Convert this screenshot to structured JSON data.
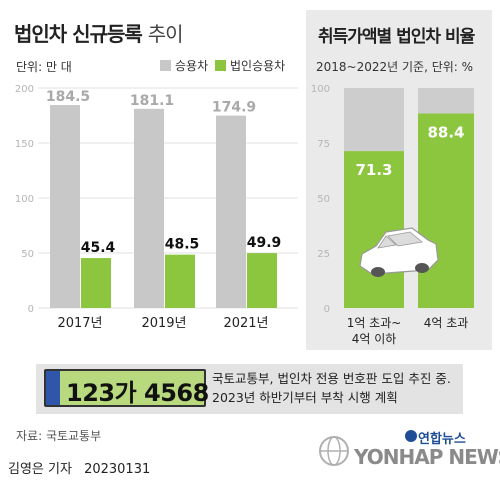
{
  "left_chart": {
    "title_bold": "법인차 신규등록",
    "title_light": "추이",
    "unit": "단위: 만 대"
  },
  "right_chart": {
    "title": "취득가액별 법인차 비율",
    "subtitle": "2018~2022년 기준, 단위: %"
  },
  "colors": {
    "gray_bar": "#c8c8c8",
    "green_bar": "#8cc63f",
    "axis_text": "#b5b5b5",
    "plate_green": "#b9d97e",
    "plate_blue": "#2f56a8"
  },
  "chart_data": [
    {
      "type": "bar",
      "title": "법인차 신규등록 추이",
      "ylabel": "단위: 만 대",
      "ylim": [
        0,
        200
      ],
      "yticks": [
        0,
        50,
        100,
        150,
        200
      ],
      "categories": [
        "2017년",
        "2019년",
        "2021년"
      ],
      "series": [
        {
          "name": "승용차",
          "color": "#c8c8c8",
          "values": [
            184.5,
            181.1,
            174.9
          ]
        },
        {
          "name": "법인승용차",
          "color": "#8cc63f",
          "values": [
            45.4,
            48.5,
            49.9
          ]
        }
      ],
      "legend": "top"
    },
    {
      "type": "bar",
      "title": "취득가액별 법인차 비율",
      "subtitle": "2018~2022년 기준, 단위: %",
      "ylim": [
        0,
        100
      ],
      "yticks": [
        0,
        25,
        50,
        75,
        100
      ],
      "categories": [
        "1억 초과~\n4억 이하",
        "4억 초과"
      ],
      "series": [
        {
          "name": "",
          "color": "#8cc63f",
          "values": [
            71.3,
            88.4
          ]
        }
      ]
    }
  ],
  "plate": {
    "number": "123가 4568",
    "note_line1": "국토교통부, 법인차 전용 번호판 도입 추진 중.",
    "note_line2": "2023년 하반기부터 부착 시행 계획"
  },
  "footer": {
    "source": "자료: 국토교통부",
    "reporter": "김영은 기자",
    "date": "20230131",
    "brand": "연합뉴스",
    "wordmark": "YONHAP NEWS"
  }
}
